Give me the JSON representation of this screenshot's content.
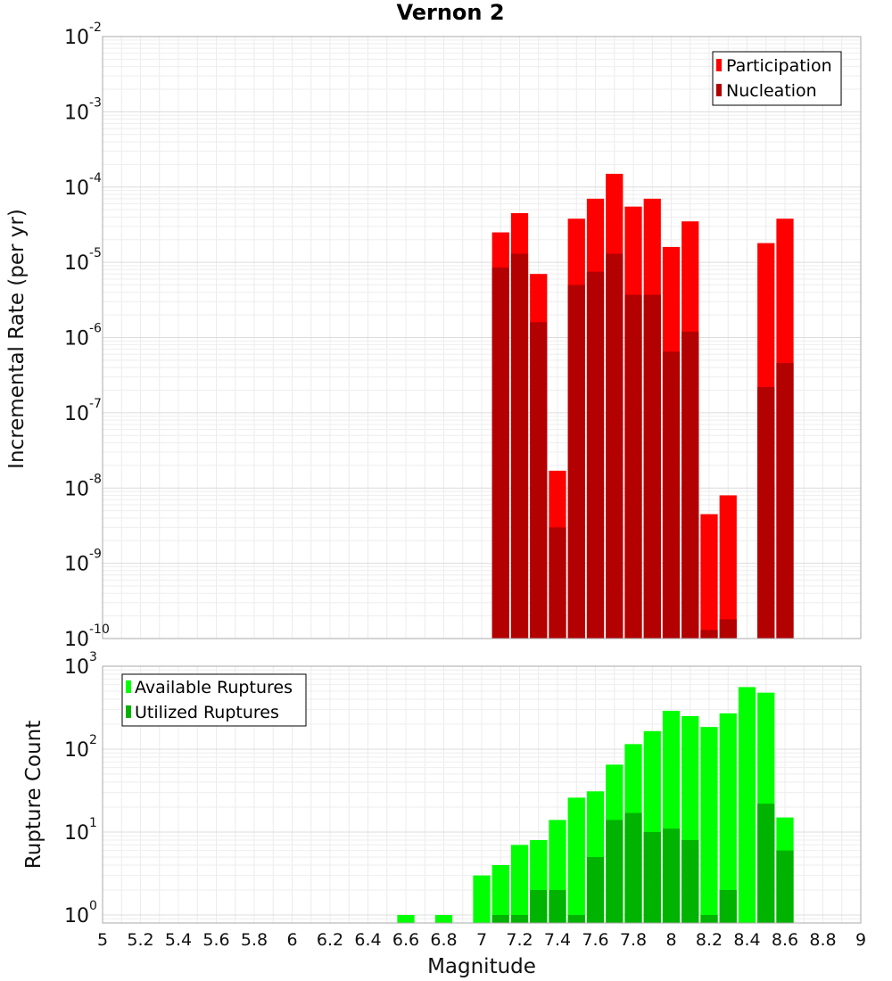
{
  "chart_data": [
    {
      "type": "bar",
      "title": "Vernon 2",
      "xlabel": "",
      "ylabel": "Incremental Rate (per yr)",
      "yscale": "log",
      "xlim": [
        5,
        9
      ],
      "ylim": [
        1e-10,
        0.01
      ],
      "y_tick_exponents": [
        -2,
        -3,
        -4,
        -5,
        -6,
        -7,
        -8,
        -9,
        -10
      ],
      "grid": true,
      "legend_position": "top-right",
      "bar_width": 0.1,
      "x": [
        7.1,
        7.2,
        7.3,
        7.4,
        7.5,
        7.6,
        7.7,
        7.8,
        7.9,
        8.0,
        8.1,
        8.2,
        8.3,
        8.5,
        8.6
      ],
      "series": [
        {
          "name": "Participation",
          "color": "#ff0000",
          "values": [
            2.5e-05,
            4.5e-05,
            7e-06,
            1.7e-08,
            3.8e-05,
            7e-05,
            0.00015,
            5.5e-05,
            7e-05,
            1.6e-05,
            3.5e-05,
            4.5e-09,
            8e-09,
            1.8e-05,
            3.8e-05
          ]
        },
        {
          "name": "Nucleation",
          "color": "#b30000",
          "values": [
            8.5e-06,
            1.3e-05,
            1.6e-06,
            3e-09,
            5e-06,
            7.5e-06,
            1.3e-05,
            3.7e-06,
            3.7e-06,
            6.5e-07,
            1.2e-06,
            1.3e-10,
            1.8e-10,
            2.2e-07,
            4.6e-07
          ]
        }
      ]
    },
    {
      "type": "bar",
      "title": "",
      "xlabel": "Magnitude",
      "ylabel": "Rupture Count",
      "yscale": "log",
      "xlim": [
        5,
        9
      ],
      "ylim": [
        0.8,
        1000
      ],
      "y_tick_exponents": [
        3,
        2,
        1,
        0
      ],
      "x_ticks": [
        "5",
        "5.2",
        "5.4",
        "5.6",
        "5.8",
        "6",
        "6.2",
        "6.4",
        "6.6",
        "6.8",
        "7",
        "7.2",
        "7.4",
        "7.6",
        "7.8",
        "8",
        "8.2",
        "8.4",
        "8.6",
        "8.8",
        "9"
      ],
      "grid": true,
      "legend_position": "top-left",
      "bar_width": 0.1,
      "x": [
        6.6,
        6.8,
        7.0,
        7.1,
        7.2,
        7.3,
        7.4,
        7.5,
        7.6,
        7.7,
        7.8,
        7.9,
        8.0,
        8.1,
        8.2,
        8.3,
        8.4,
        8.5,
        8.6
      ],
      "series": [
        {
          "name": "Available Ruptures",
          "color": "#00ff00",
          "values": [
            1,
            1,
            3,
            4,
            7,
            8,
            14,
            26,
            31,
            65,
            115,
            165,
            290,
            250,
            185,
            270,
            560,
            480,
            15
          ]
        },
        {
          "name": "Utilized Ruptures",
          "color": "#00b300",
          "values": [
            0,
            0,
            0,
            1,
            1,
            2,
            2,
            1,
            5,
            14,
            17,
            10,
            11,
            8,
            1,
            2,
            0,
            22,
            6
          ]
        }
      ]
    }
  ]
}
